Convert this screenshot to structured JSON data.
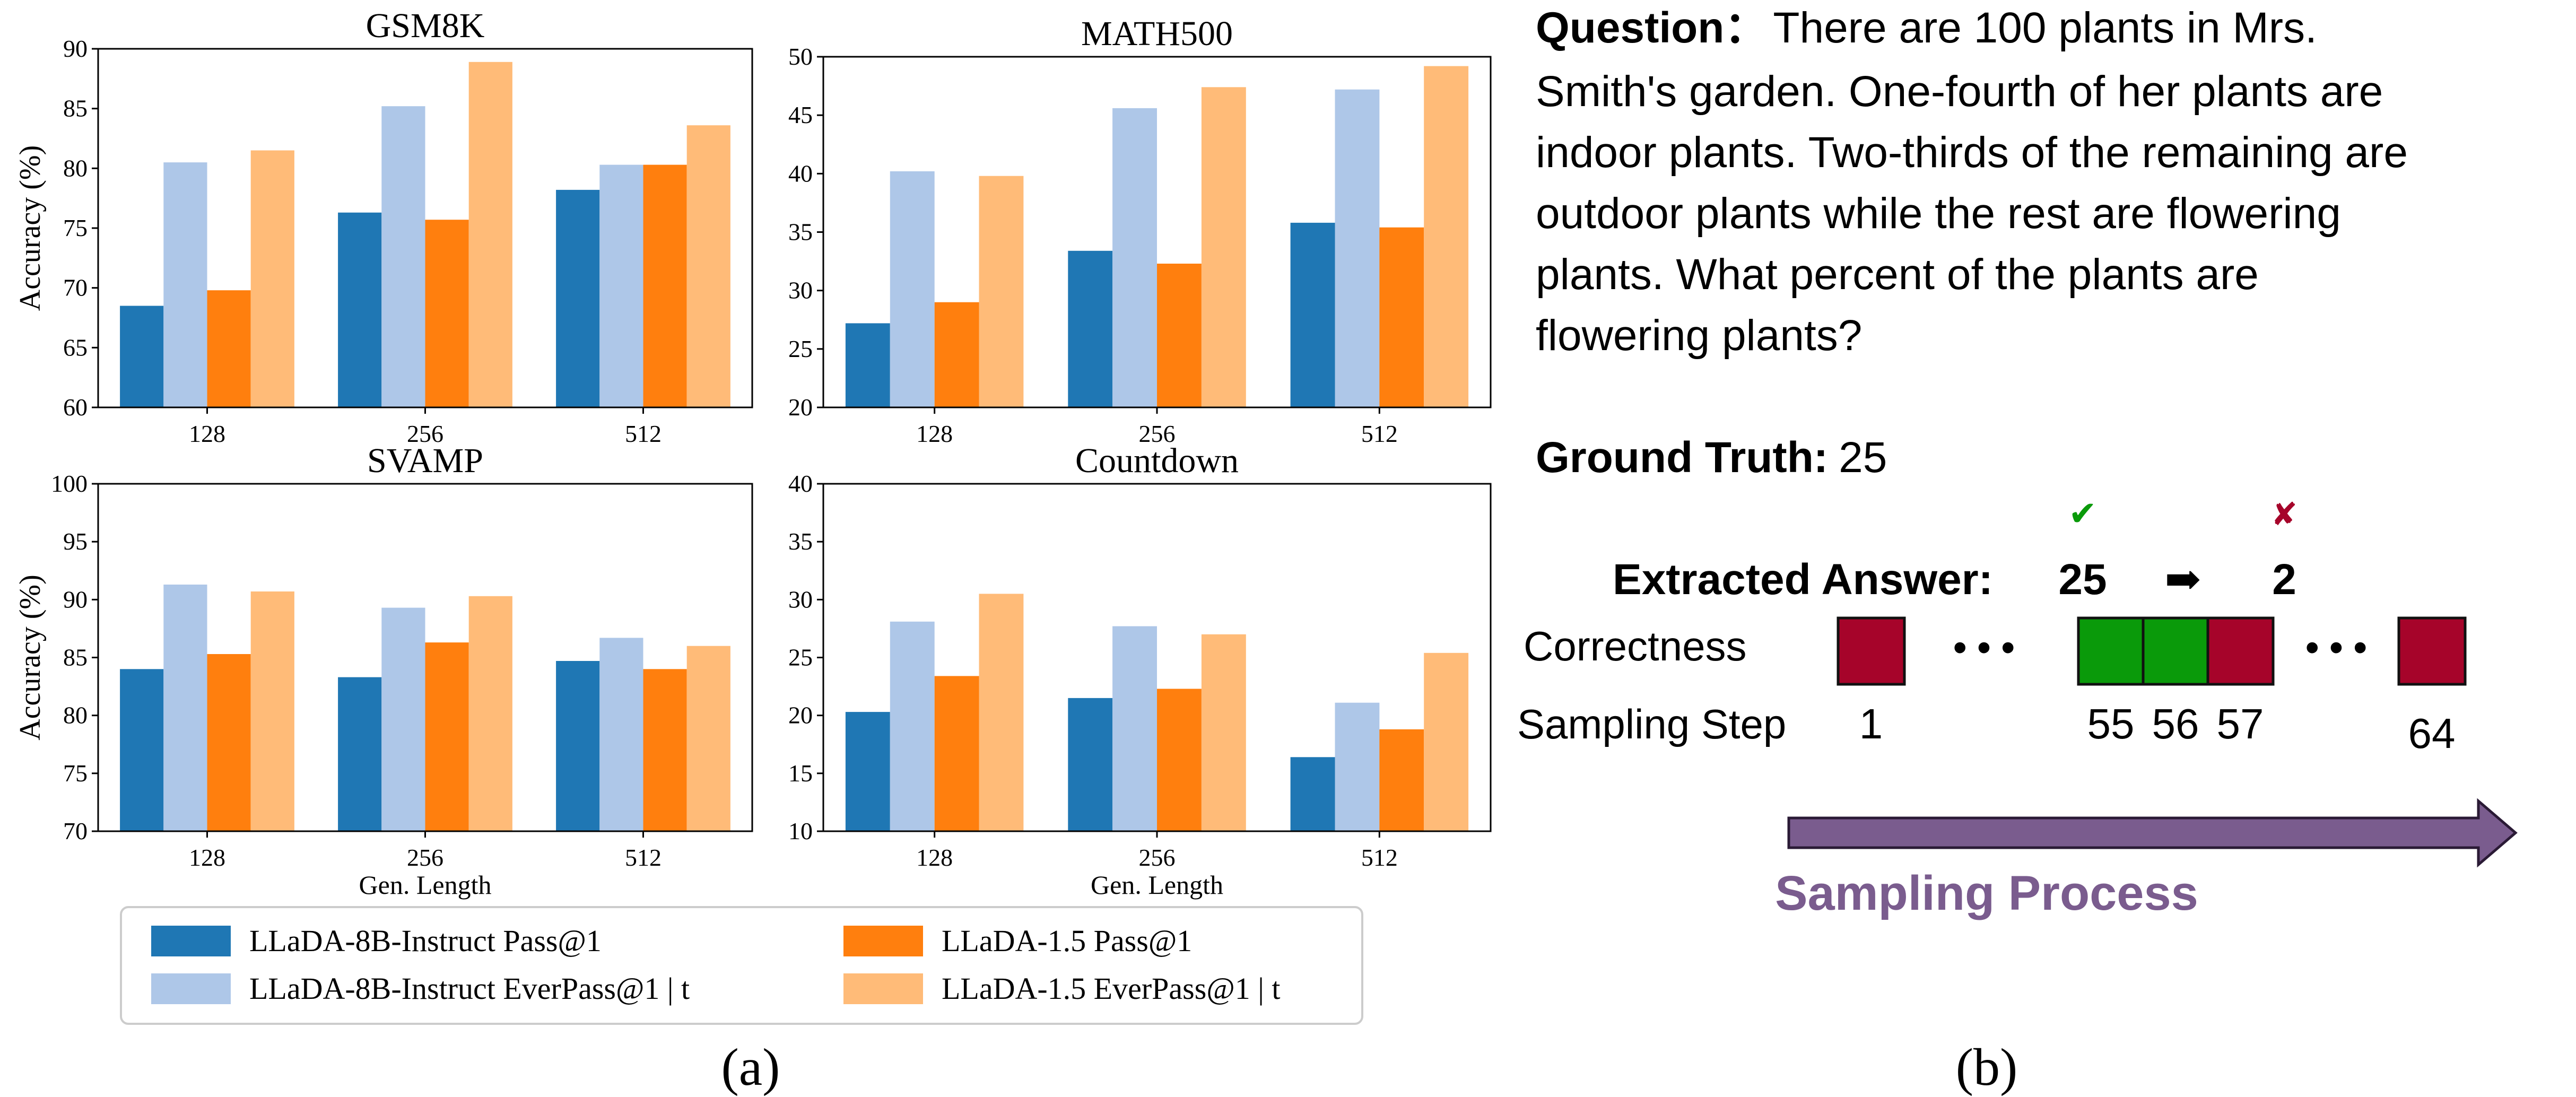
{
  "colors": {
    "llada8b_pass": "#1f77b4",
    "llada8b_ever": "#aec7e8",
    "llada15_pass": "#ff7f0e",
    "llada15_ever": "#ffbb78",
    "correct": "#0a9a0a",
    "wrong": "#a6042a",
    "arrow": "#7a5c8e",
    "sampling_text": "#7a5c8e"
  },
  "chart_data": [
    {
      "type": "bar",
      "title": "GSM8K",
      "ylabel": "Accuracy (%)",
      "xlabel": "",
      "categories": [
        "128",
        "256",
        "512"
      ],
      "ylim": [
        60,
        90
      ],
      "yticks": [
        60,
        65,
        70,
        75,
        80,
        85,
        90
      ],
      "series": [
        {
          "name": "LLaDA-8B-Instruct Pass@1",
          "values": [
            68.5,
            76.3,
            78.2
          ]
        },
        {
          "name": "LLaDA-8B-Instruct EverPass@1 | t",
          "values": [
            80.5,
            85.2,
            80.3
          ]
        },
        {
          "name": "LLaDA-1.5 Pass@1",
          "values": [
            69.8,
            75.7,
            80.3
          ]
        },
        {
          "name": "LLaDA-1.5 EverPass@1 | t",
          "values": [
            81.5,
            88.9,
            83.6
          ]
        }
      ]
    },
    {
      "type": "bar",
      "title": "MATH500",
      "ylabel": "",
      "xlabel": "",
      "categories": [
        "128",
        "256",
        "512"
      ],
      "ylim": [
        20,
        50
      ],
      "yticks": [
        20,
        25,
        30,
        35,
        40,
        45,
        50
      ],
      "series": [
        {
          "name": "LLaDA-8B-Instruct Pass@1",
          "values": [
            27.2,
            33.4,
            35.8
          ]
        },
        {
          "name": "LLaDA-8B-Instruct EverPass@1 | t",
          "values": [
            40.2,
            45.6,
            47.2
          ]
        },
        {
          "name": "LLaDA-1.5 Pass@1",
          "values": [
            29.0,
            32.3,
            35.4
          ]
        },
        {
          "name": "LLaDA-1.5 EverPass@1 | t",
          "values": [
            39.8,
            47.4,
            49.2
          ]
        }
      ]
    },
    {
      "type": "bar",
      "title": "SVAMP",
      "ylabel": "Accuracy (%)",
      "xlabel": "Gen. Length",
      "categories": [
        "128",
        "256",
        "512"
      ],
      "ylim": [
        70,
        100
      ],
      "yticks": [
        70,
        75,
        80,
        85,
        90,
        95,
        100
      ],
      "series": [
        {
          "name": "LLaDA-8B-Instruct Pass@1",
          "values": [
            84.0,
            83.3,
            84.7
          ]
        },
        {
          "name": "LLaDA-8B-Instruct EverPass@1 | t",
          "values": [
            91.3,
            89.3,
            86.7
          ]
        },
        {
          "name": "LLaDA-1.5 Pass@1",
          "values": [
            85.3,
            86.3,
            84.0
          ]
        },
        {
          "name": "LLaDA-1.5 EverPass@1 | t",
          "values": [
            90.7,
            90.3,
            86.0
          ]
        }
      ]
    },
    {
      "type": "bar",
      "title": "Countdown",
      "ylabel": "",
      "xlabel": "Gen. Length",
      "categories": [
        "128",
        "256",
        "512"
      ],
      "ylim": [
        10,
        40
      ],
      "yticks": [
        10,
        15,
        20,
        25,
        30,
        35,
        40
      ],
      "series": [
        {
          "name": "LLaDA-8B-Instruct Pass@1",
          "values": [
            20.3,
            21.5,
            16.4
          ]
        },
        {
          "name": "LLaDA-8B-Instruct EverPass@1 | t",
          "values": [
            28.1,
            27.7,
            21.1
          ]
        },
        {
          "name": "LLaDA-1.5 Pass@1",
          "values": [
            23.4,
            22.3,
            18.8
          ]
        },
        {
          "name": "LLaDA-1.5 EverPass@1 | t",
          "values": [
            30.5,
            27.0,
            25.4
          ]
        }
      ]
    }
  ],
  "legend": {
    "items": [
      "LLaDA-8B-Instruct Pass@1",
      "LLaDA-1.5 Pass@1",
      "LLaDA-8B-Instruct EverPass@1 | t",
      "LLaDA-1.5 EverPass@1 | t"
    ]
  },
  "captions": {
    "a": "(a)",
    "b": "(b)"
  },
  "panel_b": {
    "question_label": "Question",
    "question_colon": "：",
    "question_lines": [
      "There are 100 plants in Mrs.",
      "Smith's garden. One-fourth of her plants are",
      "indoor plants. Two-thirds of the remaining are",
      "outdoor plants while the rest are flowering",
      "plants. What percent of the plants are",
      "flowering plants?"
    ],
    "ground_truth_label": "Ground Truth:",
    "ground_truth_value": "25",
    "extracted_label": "Extracted Answer:",
    "extracted_from": "25",
    "extracted_arrow": "➡",
    "extracted_to": "2",
    "check_mark": "✔",
    "cross_mark": "✘",
    "correctness_label": "Correctness",
    "sampling_step_label": "Sampling Step",
    "ellipsis": "• • •",
    "boxes": [
      {
        "step": "1",
        "correct": false
      },
      {
        "step": "55",
        "correct": true
      },
      {
        "step": "56",
        "correct": true
      },
      {
        "step": "57",
        "correct": false
      },
      {
        "step": "64",
        "correct": false
      }
    ],
    "process_label": "Sampling Process"
  }
}
